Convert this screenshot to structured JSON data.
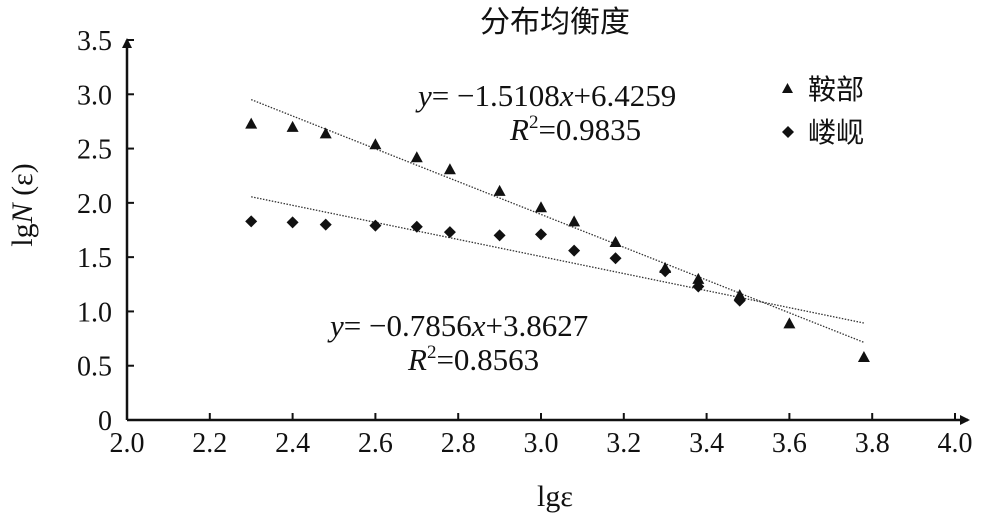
{
  "chart_data": {
    "type": "scatter",
    "title": "分布均衡度",
    "xlabel": "lgε",
    "ylabel_prefix": "lg",
    "ylabel_var": "N",
    "ylabel_suffix": " (ε)",
    "xlim": [
      2.0,
      4.0
    ],
    "ylim": [
      0,
      3.5
    ],
    "x_ticks": [
      "2.0",
      "2.2",
      "2.4",
      "2.6",
      "2.8",
      "3.0",
      "3.2",
      "3.4",
      "3.6",
      "3.8",
      "4.0"
    ],
    "y_ticks": [
      "0",
      "0.5",
      "1.0",
      "1.5",
      "2.0",
      "2.5",
      "3.0",
      "3.5"
    ],
    "series": [
      {
        "name": "鞍部",
        "marker": "triangle",
        "x": [
          2.3,
          2.4,
          2.48,
          2.6,
          2.7,
          2.78,
          2.9,
          3.0,
          3.08,
          3.18,
          3.3,
          3.38,
          3.48,
          3.6,
          3.78
        ],
        "y": [
          2.73,
          2.7,
          2.64,
          2.54,
          2.42,
          2.31,
          2.11,
          1.96,
          1.83,
          1.64,
          1.4,
          1.3,
          1.15,
          0.89,
          0.58
        ],
        "fit": {
          "slope": -1.5108,
          "intercept": 6.4259,
          "x_range": [
            2.3,
            3.78
          ],
          "equation_parts": [
            "y",
            "= −1.5108",
            "x",
            "+6.4259"
          ],
          "r2_label": "R",
          "r2_sup": "2",
          "r2_value": "=0.9835"
        }
      },
      {
        "name": "嵝岘",
        "marker": "diamond",
        "x": [
          2.3,
          2.4,
          2.48,
          2.6,
          2.7,
          2.78,
          2.9,
          3.0,
          3.08,
          3.18,
          3.3,
          3.38,
          3.48
        ],
        "y": [
          1.83,
          1.82,
          1.8,
          1.79,
          1.78,
          1.73,
          1.7,
          1.71,
          1.56,
          1.49,
          1.37,
          1.23,
          1.1
        ],
        "fit": {
          "slope": -0.7856,
          "intercept": 3.8627,
          "x_range": [
            2.3,
            3.78
          ],
          "equation_parts": [
            "y",
            "= −0.7856",
            "x",
            "+3.8627"
          ],
          "r2_label": "R",
          "r2_sup": "2",
          "r2_value": "=0.8563"
        }
      }
    ],
    "legend_position": "top-right",
    "grid": false
  }
}
